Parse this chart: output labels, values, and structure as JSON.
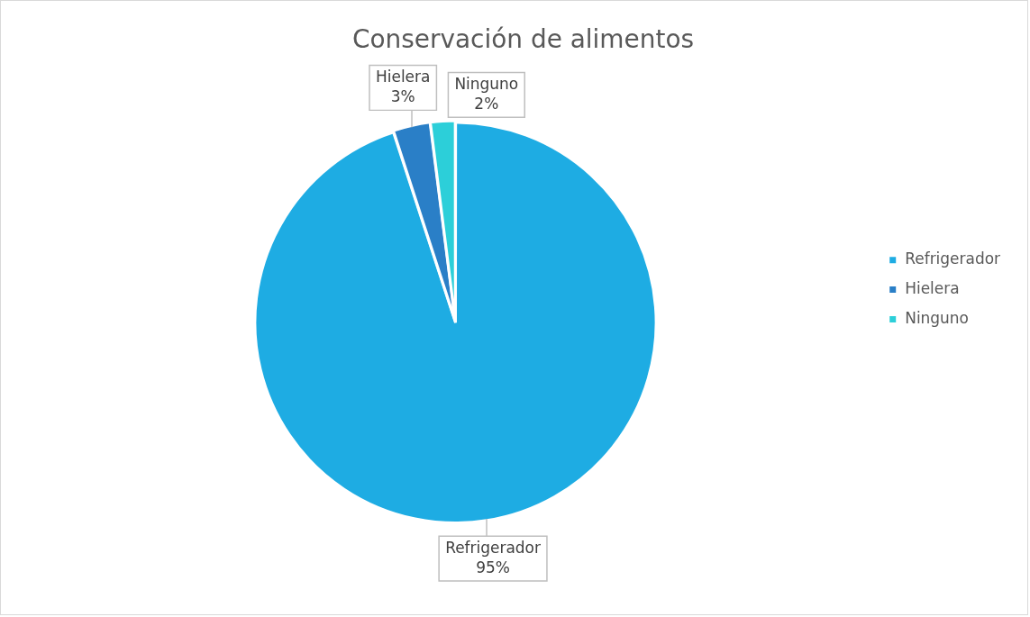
{
  "chart_data": {
    "type": "pie",
    "title": "Conservación de alimentos",
    "categories": [
      "Refrigerador",
      "Hielera",
      "Ninguno"
    ],
    "values": [
      95,
      3,
      2
    ],
    "colors": [
      "#1eace3",
      "#2a7fc7",
      "#2ccfd9"
    ],
    "value_labels": [
      "95%",
      "3%",
      "2%"
    ],
    "legend": "right"
  }
}
